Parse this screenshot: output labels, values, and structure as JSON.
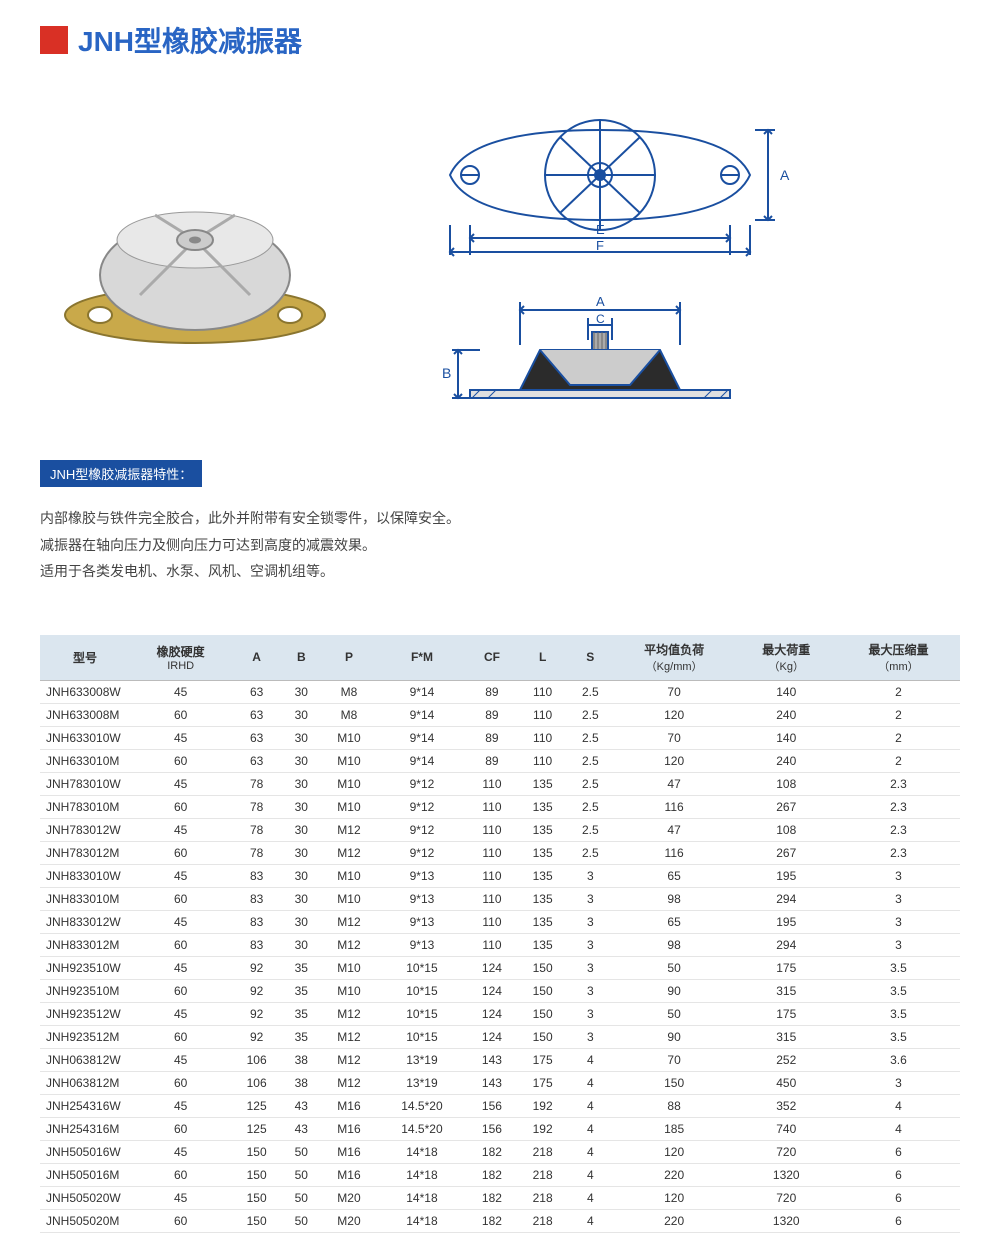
{
  "title": "JNH型橡胶减振器",
  "title_color": "#2965c4",
  "accent_color": "#d93025",
  "subheading": "JNH型橡胶减振器特性：",
  "subheading_bg": "#1a4fa0",
  "desc_lines": [
    "内部橡胶与铁件完全胶合，此外并附带有安全锁零件，以保障安全。",
    "减振器在轴向压力及侧向压力可达到高度的减震效果。",
    "适用于各类发电机、水泵、风机、空调机组等。"
  ],
  "diagram_labels": {
    "top_A": "A",
    "top_E": "E",
    "top_F": "F",
    "side_A": "A",
    "side_B": "B",
    "side_C": "C"
  },
  "table": {
    "header_bg": "#dbe6ef",
    "columns": [
      {
        "label": "型号",
        "sub": ""
      },
      {
        "label": "橡胶硬度",
        "sub": "IRHD"
      },
      {
        "label": "A",
        "sub": ""
      },
      {
        "label": "B",
        "sub": ""
      },
      {
        "label": "P",
        "sub": ""
      },
      {
        "label": "F*M",
        "sub": ""
      },
      {
        "label": "CF",
        "sub": ""
      },
      {
        "label": "L",
        "sub": ""
      },
      {
        "label": "S",
        "sub": ""
      },
      {
        "label": "平均值负荷",
        "sub": "（Kg/mm）"
      },
      {
        "label": "最大荷重",
        "sub": "（Kg）"
      },
      {
        "label": "最大压缩量",
        "sub": "（mm）"
      }
    ],
    "rows": [
      [
        "JNH633008W",
        "45",
        "63",
        "30",
        "M8",
        "9*14",
        "89",
        "110",
        "2.5",
        "70",
        "140",
        "2"
      ],
      [
        "JNH633008M",
        "60",
        "63",
        "30",
        "M8",
        "9*14",
        "89",
        "110",
        "2.5",
        "120",
        "240",
        "2"
      ],
      [
        "JNH633010W",
        "45",
        "63",
        "30",
        "M10",
        "9*14",
        "89",
        "110",
        "2.5",
        "70",
        "140",
        "2"
      ],
      [
        "JNH633010M",
        "60",
        "63",
        "30",
        "M10",
        "9*14",
        "89",
        "110",
        "2.5",
        "120",
        "240",
        "2"
      ],
      [
        "JNH783010W",
        "45",
        "78",
        "30",
        "M10",
        "9*12",
        "110",
        "135",
        "2.5",
        "47",
        "108",
        "2.3"
      ],
      [
        "JNH783010M",
        "60",
        "78",
        "30",
        "M10",
        "9*12",
        "110",
        "135",
        "2.5",
        "116",
        "267",
        "2.3"
      ],
      [
        "JNH783012W",
        "45",
        "78",
        "30",
        "M12",
        "9*12",
        "110",
        "135",
        "2.5",
        "47",
        "108",
        "2.3"
      ],
      [
        "JNH783012M",
        "60",
        "78",
        "30",
        "M12",
        "9*12",
        "110",
        "135",
        "2.5",
        "116",
        "267",
        "2.3"
      ],
      [
        "JNH833010W",
        "45",
        "83",
        "30",
        "M10",
        "9*13",
        "110",
        "135",
        "3",
        "65",
        "195",
        "3"
      ],
      [
        "JNH833010M",
        "60",
        "83",
        "30",
        "M10",
        "9*13",
        "110",
        "135",
        "3",
        "98",
        "294",
        "3"
      ],
      [
        "JNH833012W",
        "45",
        "83",
        "30",
        "M12",
        "9*13",
        "110",
        "135",
        "3",
        "65",
        "195",
        "3"
      ],
      [
        "JNH833012M",
        "60",
        "83",
        "30",
        "M12",
        "9*13",
        "110",
        "135",
        "3",
        "98",
        "294",
        "3"
      ],
      [
        "JNH923510W",
        "45",
        "92",
        "35",
        "M10",
        "10*15",
        "124",
        "150",
        "3",
        "50",
        "175",
        "3.5"
      ],
      [
        "JNH923510M",
        "60",
        "92",
        "35",
        "M10",
        "10*15",
        "124",
        "150",
        "3",
        "90",
        "315",
        "3.5"
      ],
      [
        "JNH923512W",
        "45",
        "92",
        "35",
        "M12",
        "10*15",
        "124",
        "150",
        "3",
        "50",
        "175",
        "3.5"
      ],
      [
        "JNH923512M",
        "60",
        "92",
        "35",
        "M12",
        "10*15",
        "124",
        "150",
        "3",
        "90",
        "315",
        "3.5"
      ],
      [
        "JNH063812W",
        "45",
        "106",
        "38",
        "M12",
        "13*19",
        "143",
        "175",
        "4",
        "70",
        "252",
        "3.6"
      ],
      [
        "JNH063812M",
        "60",
        "106",
        "38",
        "M12",
        "13*19",
        "143",
        "175",
        "4",
        "150",
        "450",
        "3"
      ],
      [
        "JNH254316W",
        "45",
        "125",
        "43",
        "M16",
        "14.5*20",
        "156",
        "192",
        "4",
        "88",
        "352",
        "4"
      ],
      [
        "JNH254316M",
        "60",
        "125",
        "43",
        "M16",
        "14.5*20",
        "156",
        "192",
        "4",
        "185",
        "740",
        "4"
      ],
      [
        "JNH505016W",
        "45",
        "150",
        "50",
        "M16",
        "14*18",
        "182",
        "218",
        "4",
        "120",
        "720",
        "6"
      ],
      [
        "JNH505016M",
        "60",
        "150",
        "50",
        "M16",
        "14*18",
        "182",
        "218",
        "4",
        "220",
        "1320",
        "6"
      ],
      [
        "JNH505020W",
        "45",
        "150",
        "50",
        "M20",
        "14*18",
        "182",
        "218",
        "4",
        "120",
        "720",
        "6"
      ],
      [
        "JNH505020M",
        "60",
        "150",
        "50",
        "M20",
        "14*18",
        "182",
        "218",
        "4",
        "220",
        "1320",
        "6"
      ]
    ]
  }
}
